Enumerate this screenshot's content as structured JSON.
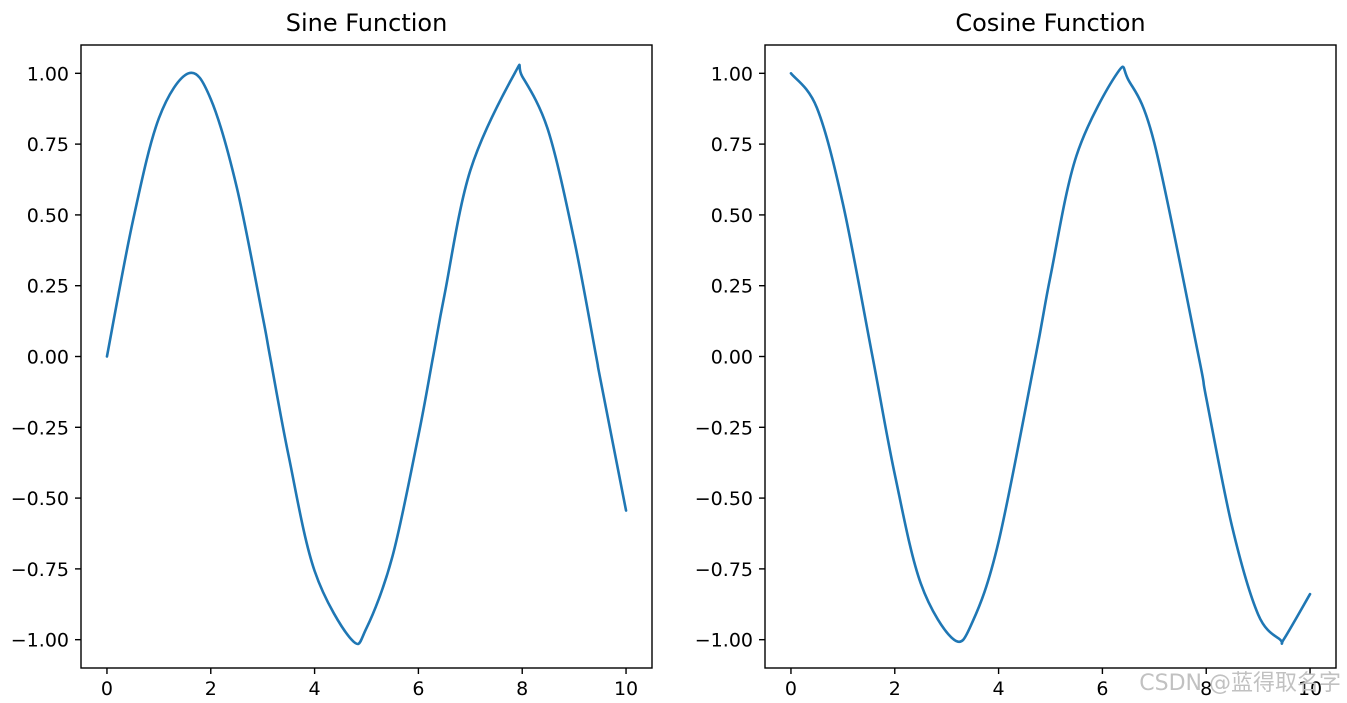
{
  "chart_data": [
    {
      "type": "line",
      "title": "Sine Function",
      "xlabel": "",
      "ylabel": "",
      "xlim": [
        -0.5,
        10.5
      ],
      "ylim": [
        -1.1,
        1.1
      ],
      "xticks": [
        0,
        2,
        4,
        6,
        8,
        10
      ],
      "xtick_labels": [
        "0",
        "2",
        "4",
        "6",
        "8",
        "10"
      ],
      "yticks": [
        1.0,
        0.75,
        0.5,
        0.25,
        0.0,
        -0.25,
        -0.5,
        -0.75,
        -1.0
      ],
      "ytick_labels": [
        "1.00",
        "0.75",
        "0.50",
        "0.25",
        "0.00",
        "−0.25",
        "−0.50",
        "−0.75",
        "−1.00"
      ],
      "grid": false,
      "series": [
        {
          "color": "#1f77b4",
          "x": [
            0,
            0.5,
            1.0,
            1.5708,
            2.0,
            2.5,
            3.0,
            3.1416,
            3.5,
            4.0,
            4.7124,
            5.0,
            5.5,
            6.0,
            6.2832,
            6.5,
            7.0,
            7.854,
            8.0,
            8.5,
            9.0,
            9.4248,
            9.5,
            10.0
          ],
          "y": [
            0.0,
            0.479,
            0.841,
            1.0,
            0.909,
            0.598,
            0.141,
            0.0,
            -0.351,
            -0.757,
            -1.0,
            -0.959,
            -0.706,
            -0.279,
            0.0,
            0.215,
            0.657,
            1.0,
            0.989,
            0.798,
            0.412,
            0.0,
            -0.075,
            -0.544
          ]
        }
      ]
    },
    {
      "type": "line",
      "title": "Cosine Function",
      "xlabel": "",
      "ylabel": "",
      "xlim": [
        -0.5,
        10.5
      ],
      "ylim": [
        -1.1,
        1.1
      ],
      "xticks": [
        0,
        2,
        4,
        6,
        8,
        10
      ],
      "xtick_labels": [
        "0",
        "2",
        "4",
        "6",
        "8",
        "10"
      ],
      "yticks": [
        1.0,
        0.75,
        0.5,
        0.25,
        0.0,
        -0.25,
        -0.5,
        -0.75,
        -1.0
      ],
      "ytick_labels": [
        "1.00",
        "0.75",
        "0.50",
        "0.25",
        "0.00",
        "−0.25",
        "−0.50",
        "−0.75",
        "−1.00"
      ],
      "grid": false,
      "series": [
        {
          "color": "#1f77b4",
          "x": [
            0,
            0.5,
            1.0,
            1.5708,
            2.0,
            2.5,
            3.1416,
            3.5,
            4.0,
            4.7124,
            5.0,
            5.5,
            6.2832,
            6.5,
            7.0,
            7.854,
            8.0,
            8.5,
            9.0,
            9.4248,
            9.5,
            10.0
          ],
          "y": [
            1.0,
            0.878,
            0.54,
            0.0,
            -0.416,
            -0.801,
            -1.0,
            -0.936,
            -0.654,
            0.0,
            0.284,
            0.709,
            1.0,
            0.977,
            0.754,
            0.0,
            -0.146,
            -0.602,
            -0.911,
            -1.0,
            -0.997,
            -0.839
          ]
        }
      ]
    }
  ],
  "watermark": "CSDN @蓝得取名字"
}
